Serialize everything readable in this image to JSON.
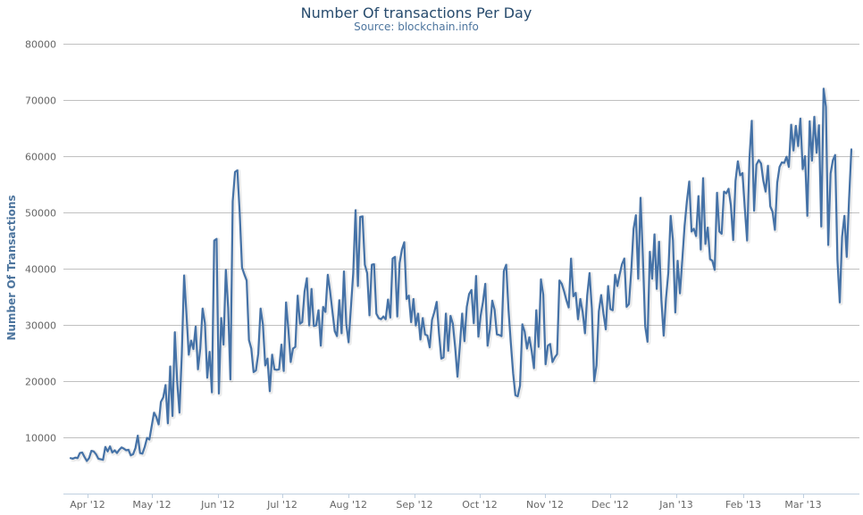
{
  "chart_data": {
    "type": "line",
    "title": "Number Of transactions Per Day",
    "subtitle": "Source: blockchain.info",
    "xlabel": "",
    "ylabel": "Number Of Transactions",
    "ylim": [
      0,
      80000
    ],
    "yticks": [
      10000,
      20000,
      30000,
      40000,
      50000,
      60000,
      70000,
      80000
    ],
    "ytick_labels": [
      "10000",
      "20000",
      "30000",
      "40000",
      "50000",
      "60000",
      "70000",
      "80000"
    ],
    "xticks": [
      "Apr '12",
      "May '12",
      "Jun '12",
      "Jul '12",
      "Aug '12",
      "Sep '12",
      "Oct '12",
      "Nov '12",
      "Dec '12",
      "Jan '13",
      "Feb '13",
      "Mar '13"
    ],
    "grid": true,
    "legend": "none",
    "series": [
      {
        "color": "#4572A7",
        "values": [
          6300,
          6200,
          6400,
          6300,
          7200,
          7300,
          6500,
          5800,
          6300,
          7600,
          7500,
          7000,
          6200,
          6100,
          6000,
          8300,
          7500,
          8400,
          7300,
          7700,
          7200,
          7800,
          8200,
          8000,
          7700,
          7800,
          6800,
          7000,
          8100,
          10300,
          7200,
          7100,
          8300,
          9900,
          9600,
          12000,
          14400,
          13600,
          12300,
          16300,
          17100,
          19300,
          12500,
          22600,
          13800,
          28700,
          20000,
          14400,
          24800,
          38800,
          32000,
          24700,
          27200,
          25700,
          29700,
          22100,
          25800,
          32900,
          30300,
          20600,
          25200,
          18000,
          45000,
          45300,
          17800,
          31200,
          26500,
          39800,
          33000,
          20300,
          52000,
          57200,
          57500,
          50000,
          40200,
          39000,
          37900,
          27300,
          25800,
          21600,
          21900,
          24900,
          32900,
          30100,
          22800,
          24000,
          18200,
          24700,
          22100,
          22000,
          22100,
          26500,
          21800,
          34000,
          29200,
          23400,
          25800,
          26100,
          35200,
          30200,
          30500,
          35900,
          38300,
          29900,
          36400,
          29800,
          29900,
          32600,
          26300,
          33200,
          32300,
          38900,
          36000,
          32400,
          28900,
          28000,
          34400,
          28500,
          39500,
          30200,
          26900,
          33100,
          39200,
          50400,
          36900,
          49200,
          49300,
          40700,
          39200,
          31700,
          40700,
          40800,
          32000,
          31200,
          31000,
          31500,
          31000,
          34500,
          31300,
          41800,
          42100,
          31500,
          41000,
          43400,
          44700,
          34600,
          35200,
          30500,
          34600,
          29900,
          32000,
          27400,
          31200,
          28300,
          28100,
          26000,
          30900,
          32300,
          34100,
          28500,
          24000,
          24200,
          32000,
          25400,
          31600,
          30200,
          26000,
          20800,
          26100,
          32000,
          27100,
          33200,
          35500,
          36200,
          30300,
          38700,
          27900,
          31600,
          34100,
          37300,
          26300,
          29200,
          34300,
          32700,
          28300,
          28200,
          28000,
          39600,
          40700,
          32700,
          26800,
          21400,
          17500,
          17300,
          19200,
          30100,
          28800,
          25800,
          27800,
          25400,
          22300,
          32600,
          26100,
          38100,
          35400,
          23000,
          26300,
          26600,
          23400,
          24200,
          24800,
          37900,
          37300,
          36000,
          34400,
          33100,
          41800,
          35100,
          35700,
          31000,
          34600,
          32300,
          28500,
          35200,
          39200,
          32900,
          20000,
          22800,
          32400,
          35300,
          32000,
          29200,
          36900,
          32800,
          32600,
          38900,
          36900,
          39000,
          40800,
          41800,
          33200,
          33700,
          39600,
          47100,
          49500,
          38200,
          52600,
          42100,
          29800,
          27000,
          43000,
          38200,
          46100,
          36400,
          44800,
          34500,
          28100,
          34700,
          39300,
          49400,
          45000,
          32200,
          41400,
          35600,
          41500,
          47600,
          52000,
          55500,
          46600,
          47100,
          45800,
          52900,
          43400,
          56100,
          44400,
          47300,
          41700,
          41400,
          39800,
          53500,
          46600,
          46200,
          53700,
          53400,
          54200,
          51300,
          45100,
          55600,
          59100,
          56600,
          57000,
          50800,
          45000,
          59600,
          66300,
          50300,
          58500,
          59300,
          58700,
          55700,
          53700,
          58300,
          51100,
          50100,
          46900,
          55300,
          58100,
          58900,
          58800,
          59900,
          58100,
          65600,
          61000,
          65400,
          61800,
          66700,
          57700,
          60000,
          49400,
          66200,
          59200,
          67000,
          60600,
          65500,
          47500,
          72000,
          68800,
          44200,
          56900,
          59300,
          60200,
          41600,
          34000,
          45700,
          49400,
          42100,
          52300,
          61200
        ]
      }
    ]
  }
}
